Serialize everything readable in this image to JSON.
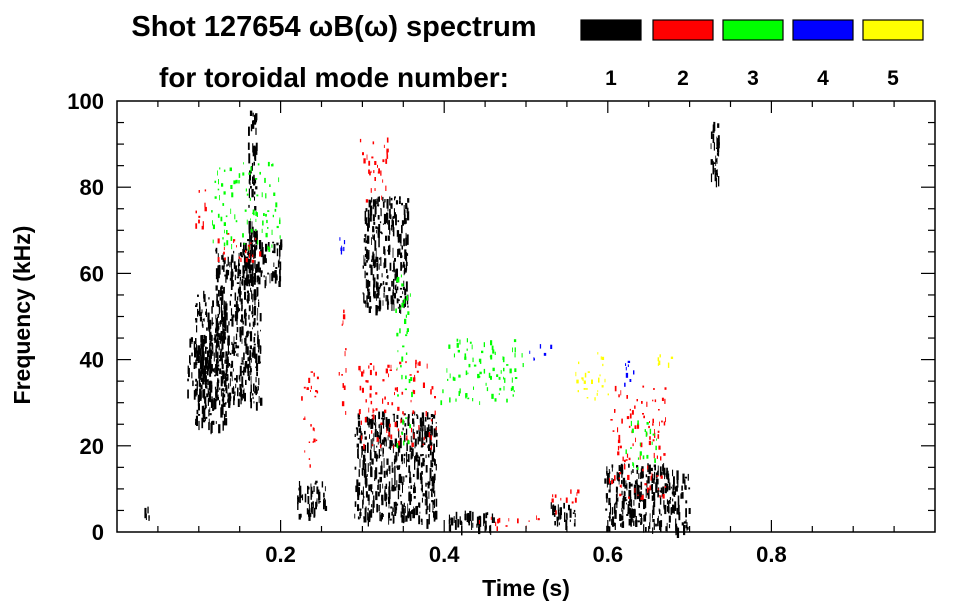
{
  "chart_data": {
    "type": "scatter",
    "title": "Shot 127654 ωB(ω) spectrum",
    "subtitle": "for toroidal mode number:",
    "xlabel": "Time (s)",
    "ylabel": "Frequency (kHz)",
    "xlim": [
      0,
      1.0
    ],
    "ylim": [
      0,
      100
    ],
    "x_ticks": [
      0.2,
      0.4,
      0.6,
      0.8
    ],
    "x_tick_labels": [
      "0.2",
      "0.4",
      "0.6",
      "0.8"
    ],
    "y_ticks": [
      0,
      20,
      40,
      60,
      80,
      100
    ],
    "y_tick_labels": [
      "0",
      "20",
      "40",
      "60",
      "80",
      "100"
    ],
    "grid": false,
    "legend": [
      {
        "label": "1",
        "color": "#000000"
      },
      {
        "label": "2",
        "color": "#ff0000"
      },
      {
        "label": "3",
        "color": "#00ff00"
      },
      {
        "label": "4",
        "color": "#0000ff"
      },
      {
        "label": "5",
        "color": "#ffff00"
      }
    ],
    "series": [
      {
        "name": "1",
        "color": "#000000",
        "regions": [
          {
            "t": [
              0.03,
              0.04
            ],
            "f": [
              3,
              6
            ]
          },
          {
            "t": [
              0.085,
              0.115
            ],
            "f": [
              32,
              46
            ]
          },
          {
            "t": [
              0.095,
              0.135
            ],
            "f": [
              25,
              56
            ]
          },
          {
            "t": [
              0.12,
              0.175
            ],
            "f": [
              30,
              66
            ]
          },
          {
            "t": [
              0.15,
              0.2
            ],
            "f": [
              58,
              68
            ]
          },
          {
            "t": [
              0.16,
              0.17
            ],
            "f": [
              65,
              98
            ]
          },
          {
            "t": [
              0.22,
              0.255
            ],
            "f": [
              4,
              12
            ]
          },
          {
            "t": [
              0.29,
              0.39
            ],
            "f": [
              3,
              28
            ]
          },
          {
            "t": [
              0.3,
              0.355
            ],
            "f": [
              52,
              78
            ]
          },
          {
            "t": [
              0.405,
              0.46
            ],
            "f": [
              1,
              5
            ]
          },
          {
            "t": [
              0.53,
              0.56
            ],
            "f": [
              2,
              7
            ]
          },
          {
            "t": [
              0.595,
              0.7
            ],
            "f": [
              1,
              16
            ]
          },
          {
            "t": [
              0.725,
              0.735
            ],
            "f": [
              80,
              96
            ]
          }
        ]
      },
      {
        "name": "2",
        "color": "#ff0000",
        "regions": [
          {
            "t": [
              0.095,
              0.11
            ],
            "f": [
              70,
              82
            ]
          },
          {
            "t": [
              0.12,
              0.175
            ],
            "f": [
              63,
              70
            ]
          },
          {
            "t": [
              0.225,
              0.245
            ],
            "f": [
              15,
              38
            ]
          },
          {
            "t": [
              0.27,
              0.28
            ],
            "f": [
              28,
              52
            ]
          },
          {
            "t": [
              0.295,
              0.33
            ],
            "f": [
              76,
              92
            ]
          },
          {
            "t": [
              0.295,
              0.39
            ],
            "f": [
              20,
              40
            ]
          },
          {
            "t": [
              0.44,
              0.52
            ],
            "f": [
              1,
              4
            ]
          },
          {
            "t": [
              0.53,
              0.57
            ],
            "f": [
              5,
              10
            ]
          },
          {
            "t": [
              0.6,
              0.67
            ],
            "f": [
              8,
              34
            ]
          }
        ]
      },
      {
        "name": "3",
        "color": "#00ff00",
        "regions": [
          {
            "t": [
              0.115,
              0.2
            ],
            "f": [
              66,
              86
            ]
          },
          {
            "t": [
              0.34,
              0.36
            ],
            "f": [
              20,
              60
            ]
          },
          {
            "t": [
              0.395,
              0.5
            ],
            "f": [
              30,
              45
            ]
          },
          {
            "t": [
              0.62,
              0.66
            ],
            "f": [
              15,
              26
            ]
          }
        ]
      },
      {
        "name": "4",
        "color": "#0000ff",
        "regions": [
          {
            "t": [
              0.27,
              0.28
            ],
            "f": [
              60,
              70
            ]
          },
          {
            "t": [
              0.5,
              0.53
            ],
            "f": [
              40,
              44
            ]
          },
          {
            "t": [
              0.61,
              0.635
            ],
            "f": [
              34,
              40
            ]
          }
        ]
      },
      {
        "name": "5",
        "color": "#ffff00",
        "regions": [
          {
            "t": [
              0.56,
              0.6
            ],
            "f": [
              30,
              42
            ]
          },
          {
            "t": [
              0.66,
              0.68
            ],
            "f": [
              38,
              42
            ]
          }
        ]
      }
    ]
  }
}
